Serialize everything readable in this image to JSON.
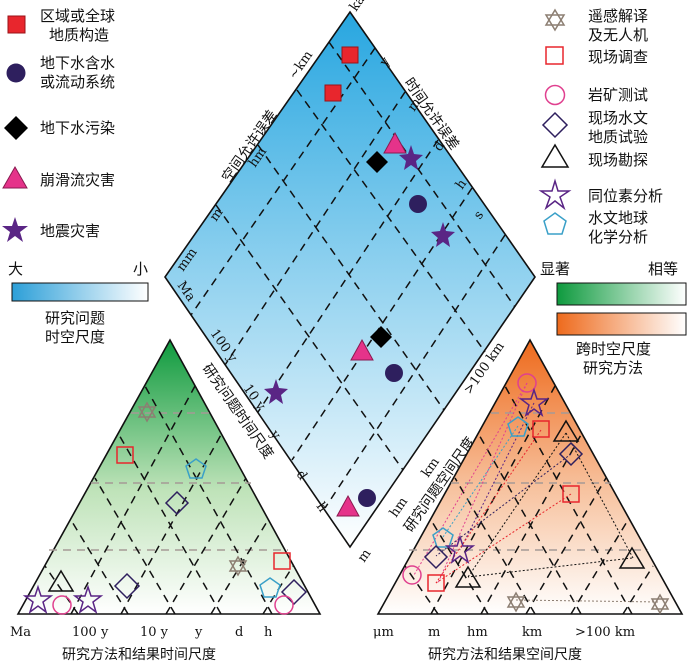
{
  "left_legend": {
    "items": [
      {
        "symbol": "square",
        "lines": [
          "区域或全球",
          "地质构造"
        ]
      },
      {
        "symbol": "circle",
        "lines": [
          "地下水含水",
          "或流动系统"
        ]
      },
      {
        "symbol": "diamond",
        "lines": [
          "地下水污染"
        ]
      },
      {
        "symbol": "triangle",
        "lines": [
          "崩滑流灾害"
        ]
      },
      {
        "symbol": "star",
        "lines": [
          "地震灾害"
        ]
      }
    ],
    "gradient_left": "大",
    "gradient_right": "小",
    "gradient_caption": [
      "研究问题",
      "时空尺度"
    ]
  },
  "right_legend": {
    "items": [
      {
        "symbol": "hexagram",
        "lines": [
          "遥感解译",
          "及无人机"
        ]
      },
      {
        "symbol": "square-open",
        "lines": [
          "现场调查"
        ]
      },
      {
        "symbol": "circle-open",
        "lines": [
          "岩矿测试"
        ]
      },
      {
        "symbol": "diamond-open",
        "lines": [
          "现场水文",
          "地质试验"
        ]
      },
      {
        "symbol": "triangle-open",
        "lines": [
          "现场勘探"
        ]
      },
      {
        "symbol": "star-open",
        "lines": [
          "同位素分析"
        ]
      },
      {
        "symbol": "pentagon-open",
        "lines": [
          "水文地球",
          "化学分析"
        ]
      }
    ],
    "gradient_left": "显著",
    "gradient_right": "相等",
    "gradient_caption": [
      "跨时空尺度",
      "研究方法"
    ]
  },
  "diamond": {
    "left_upper_label": "空间允许误差",
    "left_upper_ticks": [
      "~km",
      "hm",
      "m",
      "mm"
    ],
    "right_upper_label": "时间允许误差",
    "right_upper_ticks": [
      "ka",
      "y",
      "m",
      "d",
      "h",
      "s"
    ],
    "left_lower_label": "研究问题时间尺度",
    "left_lower_ticks": [
      "Ma",
      "100 y",
      "10 y",
      "y",
      "d",
      "h"
    ],
    "right_lower_label": "研究问题空间尺度",
    "right_lower_ticks": [
      ">100 km",
      "km",
      "hm",
      "m"
    ]
  },
  "bottom_left": {
    "axis_ticks": [
      "Ma",
      "100 y",
      "10 y",
      "y",
      "d",
      "h"
    ],
    "title": "研究方法和结果时间尺度"
  },
  "bottom_right": {
    "axis_ticks": [
      "μm",
      "m",
      "hm",
      "km",
      ">100 km"
    ],
    "title": "研究方法和结果空间尺度"
  },
  "colors": {
    "red": "#e8262d",
    "navy": "#2e1f5e",
    "black": "#000000",
    "pink": "#e5338a",
    "purple": "#5a2585",
    "taupe": "#8c7e72",
    "magenta": "#e0408f",
    "cyan": "#3aa0c8",
    "blue_top": "#27a6e0",
    "green_top": "#0e9a3e",
    "orange_top": "#ee6a1c"
  }
}
